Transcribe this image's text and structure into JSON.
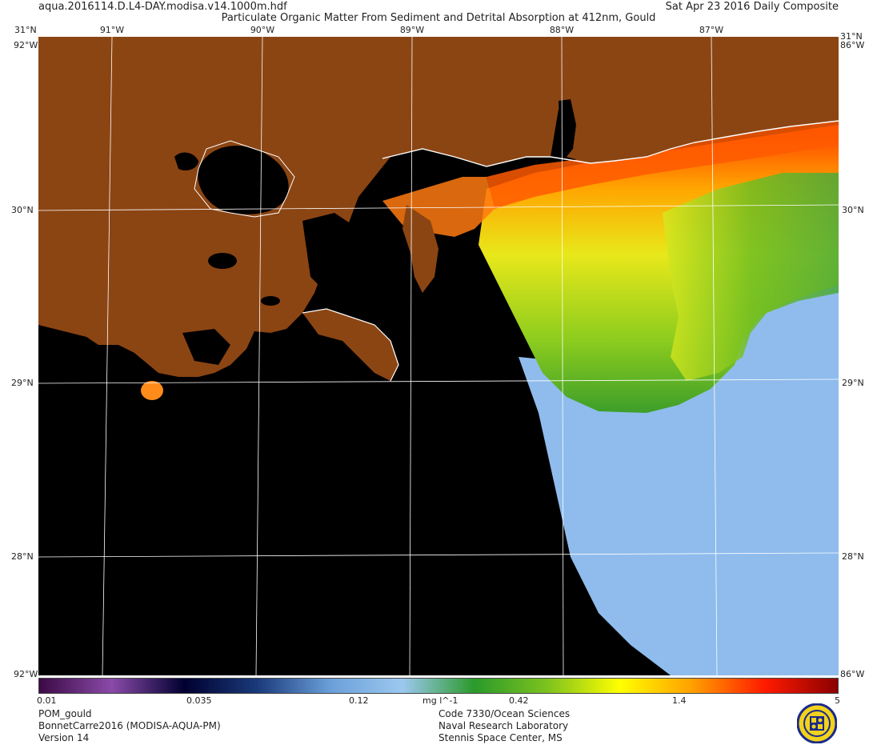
{
  "header": {
    "file_name": "aqua.2016114.D.L4-DAY.modisa.v14.1000m.hdf",
    "date": "Sat Apr 23 2016 Daily Composite",
    "title": "Particulate Organic Matter From Sediment and Detrital Absorption at 412nm, Gould"
  },
  "map": {
    "longitude_labels": [
      "91°W",
      "90°W",
      "89°W",
      "88°W",
      "87°W"
    ],
    "latitude_labels": [
      "30°N",
      "29°N",
      "28°N"
    ],
    "corner_labels": {
      "top_left": "31°N",
      "top_right": "31°N",
      "left_stub_top": "92°W",
      "right_stub_top": "86°W",
      "left_stub_bottom": "92°W",
      "right_stub_bottom": "86°W"
    },
    "colors": {
      "land": "#8b4513",
      "no_data": "#000000",
      "grid": "#ffffff",
      "coast": "#ffffff"
    }
  },
  "colorbar": {
    "ticks": [
      "0.01",
      "0.035",
      "0.12",
      "mg l^-1",
      "0.42",
      "1.4",
      "5"
    ],
    "stops": [
      "#3b0a45",
      "#8a4aa8",
      "#000030",
      "#1a3a7a",
      "#6a9fd8",
      "#9cc8ef",
      "#2a9a2a",
      "#7dc21e",
      "#ffff00",
      "#ff9f00",
      "#ff1a00",
      "#8a0000"
    ]
  },
  "footer": {
    "left": [
      "POM_gould",
      "BonnetCarre2016 (MODISA-AQUA-PM)",
      "Version 14"
    ],
    "center": [
      "Code 7330/Ocean Sciences",
      "Naval Research Laboratory",
      "Stennis Space Center, MS"
    ]
  },
  "seal": {
    "colors": {
      "ring": "#1a2a8a",
      "field": "#f2d21b"
    }
  }
}
